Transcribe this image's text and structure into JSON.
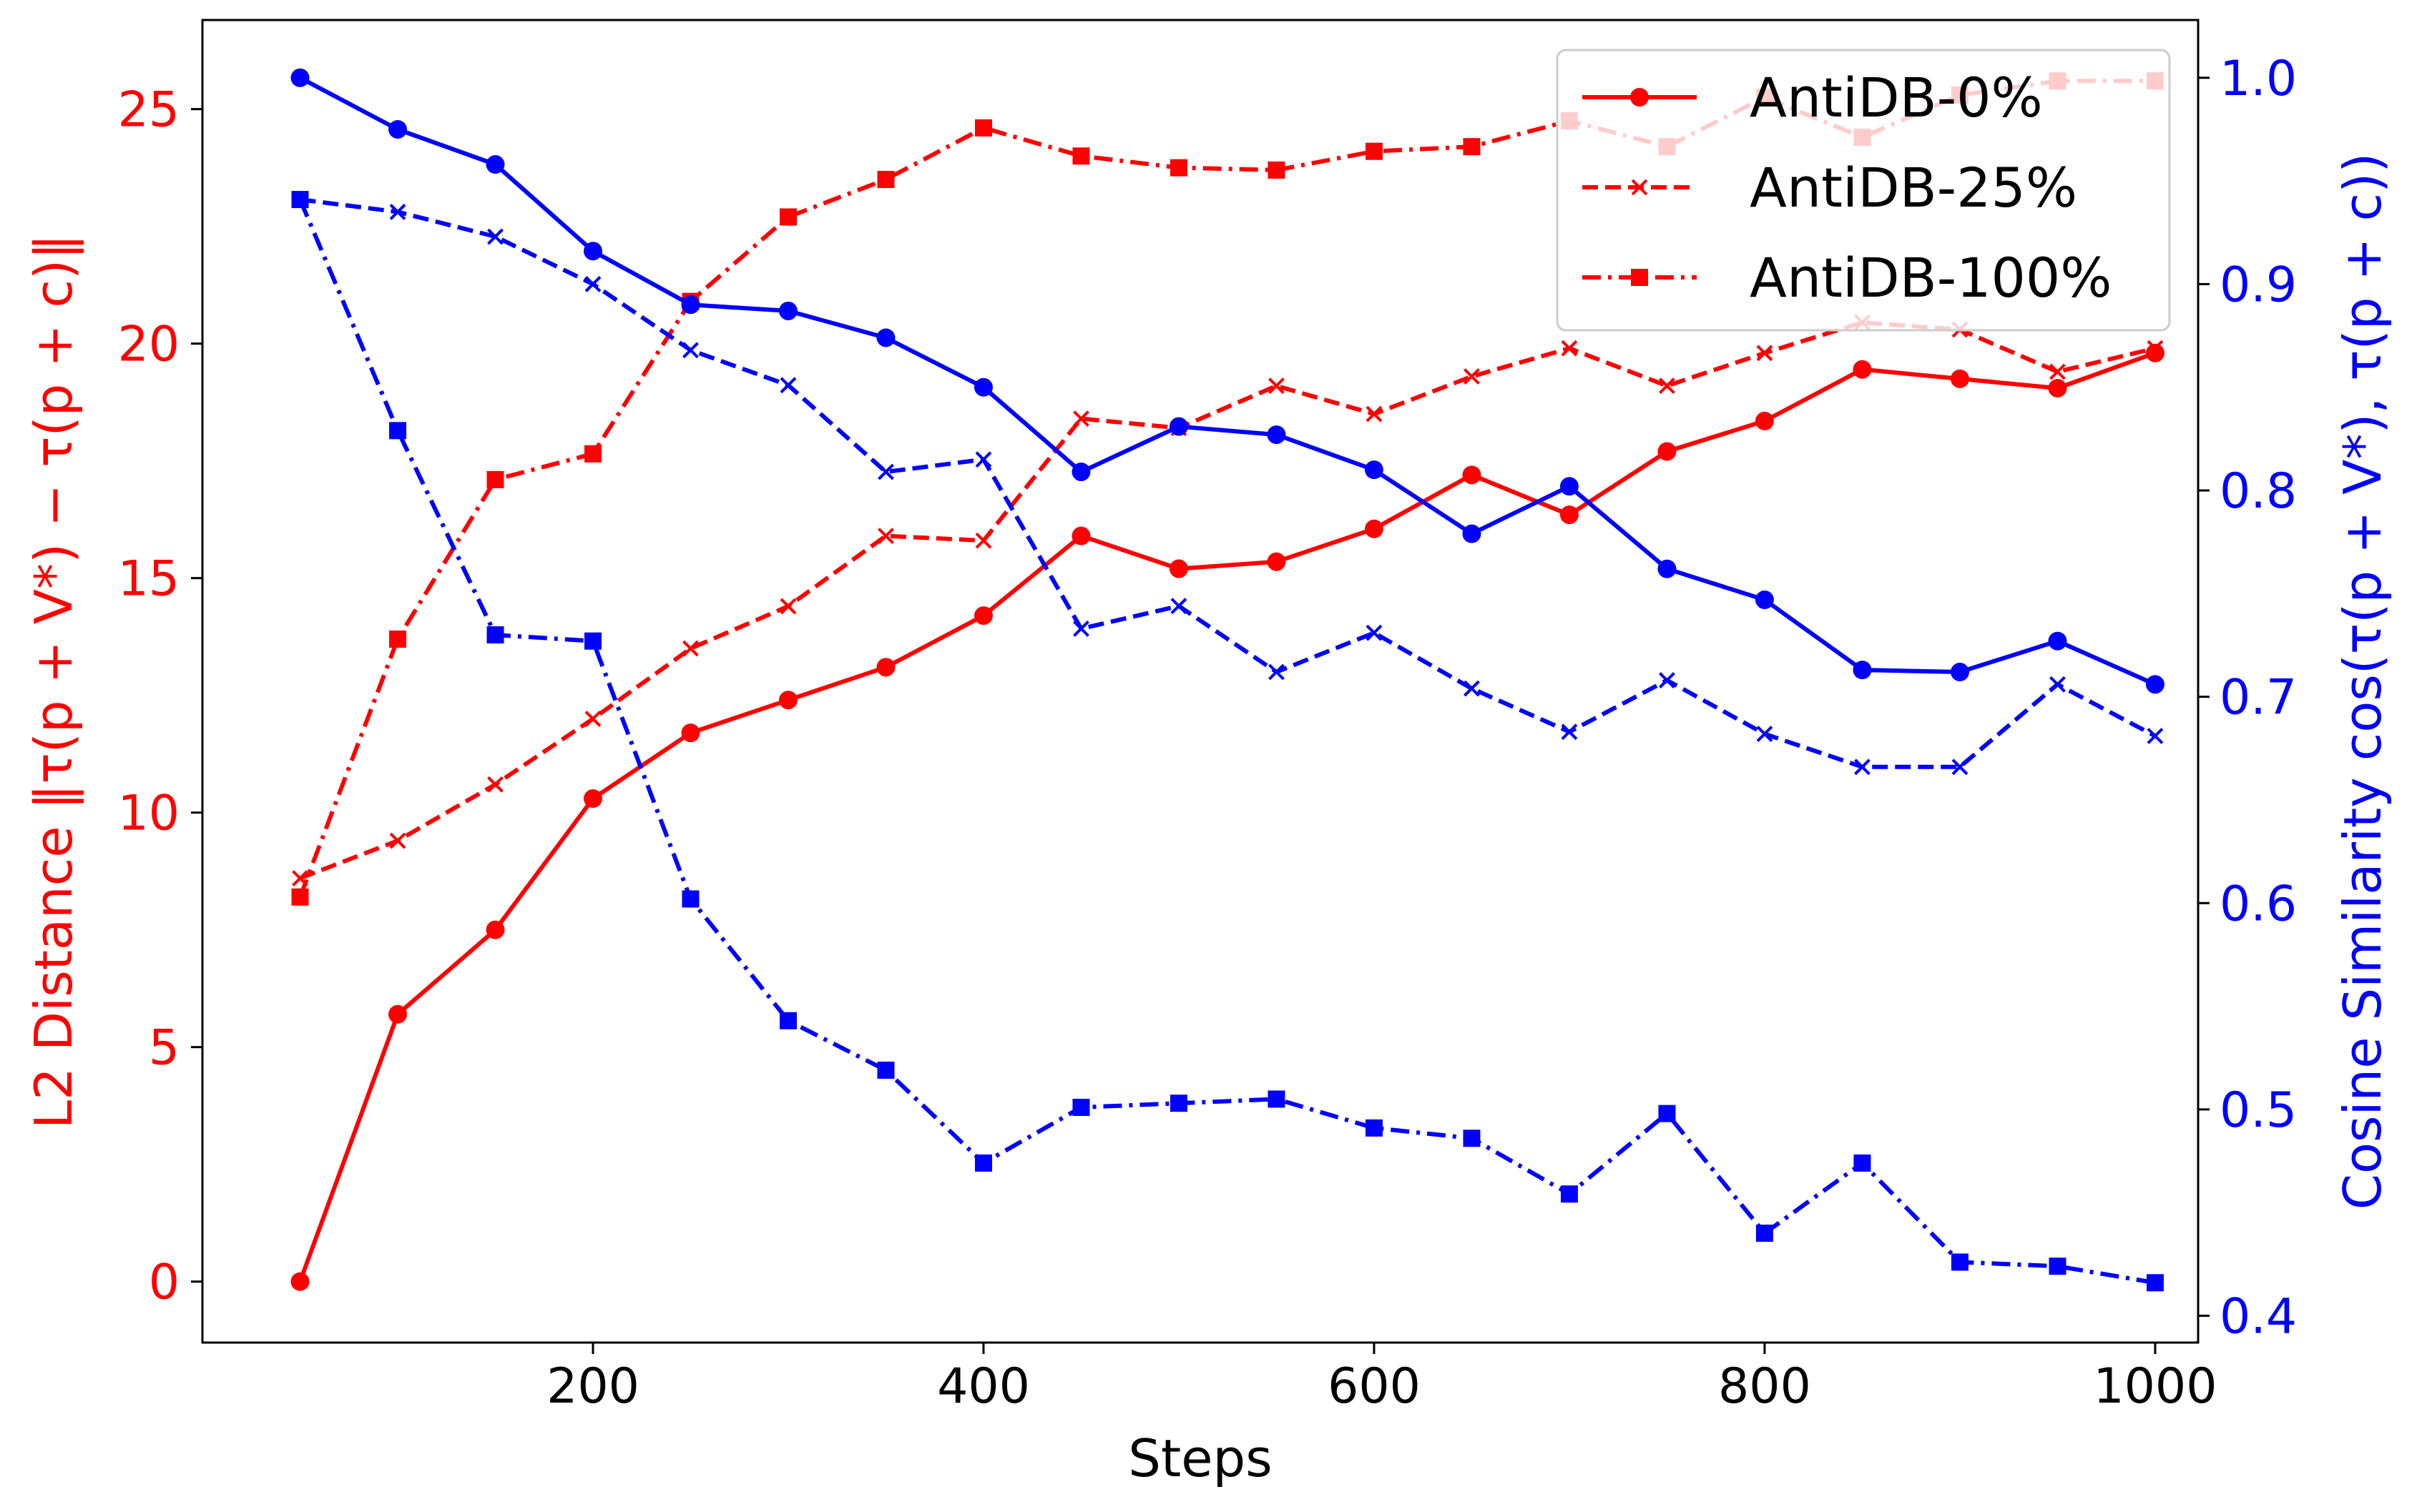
{
  "chart_data": {
    "type": "line",
    "xlabel": "Steps",
    "ylabel_left": "L2 Distance ‖τ(p + V*) − τ(p + c)‖",
    "ylabel_right": "Cosine Similarity cos(τ(p + V*), τ(p + c))",
    "xlim": [
      0,
      1022
    ],
    "ylim_left": [
      -1.3,
      26.9
    ],
    "ylim_right": [
      0.387,
      1.028
    ],
    "x_ticks": [
      200,
      400,
      600,
      800,
      1000
    ],
    "y_left_ticks": [
      0,
      5,
      10,
      15,
      20,
      25
    ],
    "y_right_ticks": [
      "0.4",
      "0.5",
      "0.6",
      "0.7",
      "0.8",
      "0.9",
      "1.0"
    ],
    "grid": false,
    "legend_position": "top-right",
    "left_color": "#ff0000",
    "right_color": "#0000ff",
    "x": [
      50,
      100,
      150,
      200,
      250,
      300,
      350,
      400,
      450,
      500,
      550,
      600,
      650,
      700,
      750,
      800,
      850,
      900,
      950,
      1000
    ],
    "series": [
      {
        "name": "AntiDB-0%",
        "axis": "left",
        "style": "solid",
        "marker": "circle",
        "color": "#ff0000",
        "values": [
          0.0,
          5.7,
          7.5,
          10.3,
          11.7,
          12.4,
          13.1,
          14.2,
          15.9,
          15.2,
          15.35,
          16.05,
          17.2,
          16.35,
          17.7,
          18.35,
          19.45,
          19.25,
          19.05,
          19.8
        ]
      },
      {
        "name": "AntiDB-25%",
        "axis": "left",
        "style": "dashed",
        "marker": "x",
        "color": "#ff0000",
        "values": [
          8.6,
          9.4,
          10.6,
          12.0,
          13.5,
          14.4,
          15.9,
          15.8,
          18.4,
          18.2,
          19.1,
          18.5,
          19.3,
          19.9,
          19.1,
          19.8,
          20.45,
          20.3,
          19.4,
          19.9
        ]
      },
      {
        "name": "AntiDB-100%",
        "axis": "left",
        "style": "dashdot",
        "marker": "square",
        "color": "#ff0000",
        "values": [
          8.2,
          13.7,
          17.1,
          17.65,
          20.9,
          22.7,
          23.5,
          24.6,
          24.0,
          23.75,
          23.7,
          24.1,
          24.2,
          24.75,
          24.2,
          25.25,
          24.4,
          25.3,
          25.6,
          25.6
        ]
      },
      {
        "name": "",
        "axis": "right",
        "style": "solid",
        "marker": "circle",
        "color": "#0000ff",
        "values": [
          1.0,
          0.975,
          0.958,
          0.916,
          0.89,
          0.887,
          0.874,
          0.85,
          0.809,
          0.831,
          0.827,
          0.81,
          0.779,
          0.802,
          0.762,
          0.747,
          0.713,
          0.712,
          0.727,
          0.706
        ]
      },
      {
        "name": "",
        "axis": "right",
        "style": "dashed",
        "marker": "x",
        "color": "#0000ff",
        "values": [
          0.941,
          0.935,
          0.923,
          0.9,
          0.868,
          0.851,
          0.809,
          0.815,
          0.733,
          0.744,
          0.712,
          0.731,
          0.704,
          0.683,
          0.708,
          0.682,
          0.666,
          0.666,
          0.706,
          0.681
        ]
      },
      {
        "name": "",
        "axis": "right",
        "style": "dashdot",
        "marker": "square",
        "color": "#0000ff",
        "values": [
          0.941,
          0.829,
          0.73,
          0.727,
          0.602,
          0.543,
          0.519,
          0.474,
          0.501,
          0.503,
          0.505,
          0.491,
          0.486,
          0.459,
          0.498,
          0.44,
          0.474,
          0.426,
          0.424,
          0.416
        ]
      }
    ]
  }
}
